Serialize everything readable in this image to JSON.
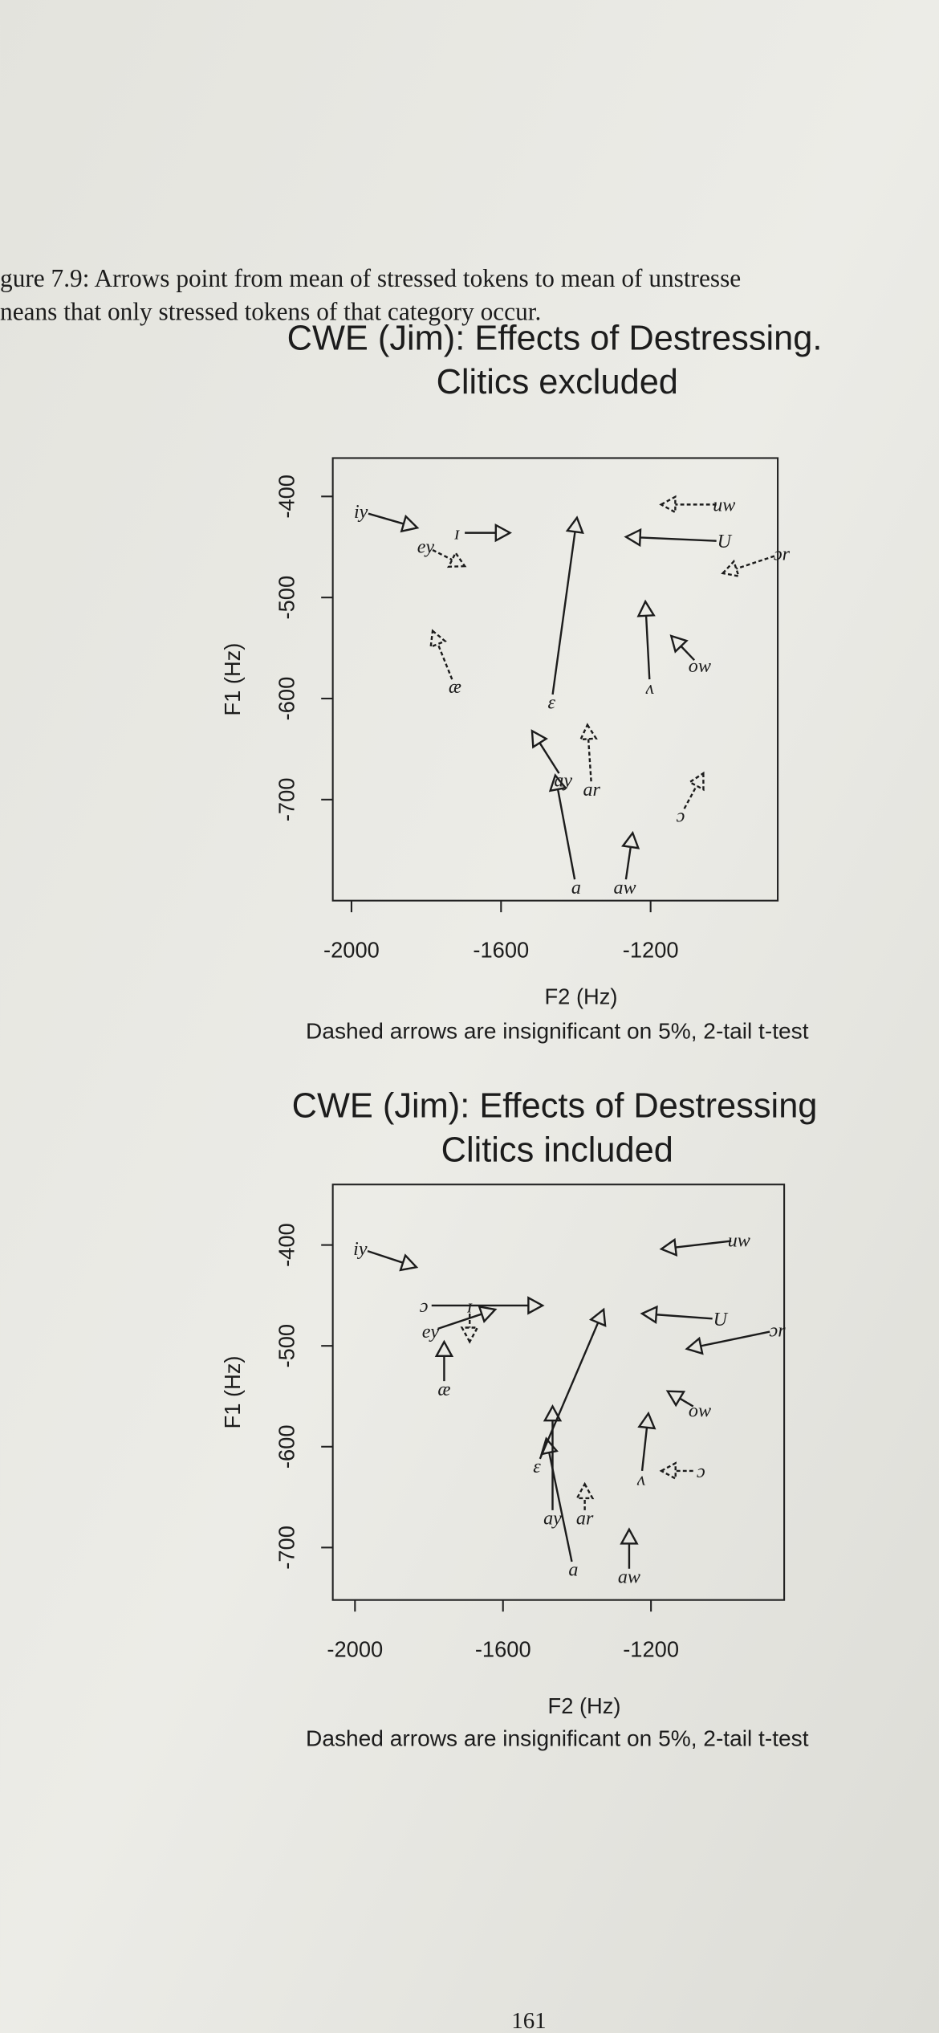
{
  "caption": [
    "gure 7.9: Arrows point from mean of stressed tokens to mean of unstresse",
    "neans that only stressed tokens of that category occur."
  ],
  "chart_data": [
    {
      "type": "arrow",
      "title": "CWE (Jim): Effects of Destressing.",
      "subtitle": "Clitics excluded",
      "x_label": "F2 (Hz)",
      "y_label": "F1 (Hz)",
      "note": "Dashed arrows are insignificant on 5%, 2-tail t-test",
      "xlim": [
        -2050,
        -860
      ],
      "ylim": [
        -800,
        -362
      ],
      "xticks": [
        -2000,
        -1600,
        -1200
      ],
      "yticks": [
        -400,
        -500,
        -600,
        -700
      ],
      "arrows": [
        {
          "label": "iy",
          "x": -1955,
          "y": -417,
          "x_end": -1824,
          "y_end": -431,
          "dashed": false
        },
        {
          "label": "ey",
          "x": -1783,
          "y": -453,
          "x_end": -1697,
          "y_end": -469,
          "dashed": true
        },
        {
          "label": "ɪ",
          "x": -1697,
          "y": -436,
          "x_end": -1576,
          "y_end": -436,
          "dashed": false
        },
        {
          "label": "æ",
          "x": -1731,
          "y": -581,
          "x_end": -1783,
          "y_end": -533,
          "dashed": true
        },
        {
          "label": "ɛ",
          "x": -1462,
          "y": -596,
          "x_end": -1397,
          "y_end": -421,
          "dashed": false
        },
        {
          "label": "U",
          "x": -1024,
          "y": -444,
          "x_end": -1266,
          "y_end": -440,
          "dashed": false
        },
        {
          "label": "uw",
          "x": -1024,
          "y": -408,
          "x_end": -1172,
          "y_end": -408,
          "dashed": true
        },
        {
          "label": "ɔr",
          "x": -869,
          "y": -459,
          "x_end": -1007,
          "y_end": -476,
          "dashed": true
        },
        {
          "label": "ow",
          "x": -1083,
          "y": -562,
          "x_end": -1145,
          "y_end": -538,
          "dashed": false
        },
        {
          "label": "ʌ",
          "x": -1203,
          "y": -581,
          "x_end": -1214,
          "y_end": -504,
          "dashed": false
        },
        {
          "label": "a",
          "x": -1403,
          "y": -779,
          "x_end": -1455,
          "y_end": -676,
          "dashed": false
        },
        {
          "label": "ay",
          "x": -1445,
          "y": -674,
          "x_end": -1517,
          "y_end": -632,
          "dashed": false
        },
        {
          "label": "ar",
          "x": -1359,
          "y": -682,
          "x_end": -1369,
          "y_end": -626,
          "dashed": true
        },
        {
          "label": "aw",
          "x": -1266,
          "y": -779,
          "x_end": -1248,
          "y_end": -733,
          "dashed": false
        },
        {
          "label": "ɔ",
          "x": -1110,
          "y": -709,
          "x_end": -1059,
          "y_end": -674,
          "dashed": true
        }
      ]
    },
    {
      "type": "arrow",
      "title": "CWE (Jim): Effects of Destressing",
      "subtitle": "Clitics included",
      "x_label": "F2 (Hz)",
      "y_label": "F1 (Hz)",
      "note": "Dashed arrows are insignificant on 5%, 2-tail t-test",
      "xlim": [
        -2060,
        -840
      ],
      "ylim": [
        -752,
        -340
      ],
      "xticks": [
        -2000,
        -1600,
        -1200
      ],
      "yticks": [
        -400,
        -500,
        -600,
        -700
      ],
      "arrows": [
        {
          "label": "iy",
          "x": -1966,
          "y": -406,
          "x_end": -1834,
          "y_end": -422,
          "dashed": false
        },
        {
          "label": "ɔ",
          "x": -1793,
          "y": -460,
          "x_end": -1493,
          "y_end": -460,
          "dashed": false
        },
        {
          "label": "ey",
          "x": -1776,
          "y": -483,
          "x_end": -1621,
          "y_end": -464,
          "dashed": false
        },
        {
          "label": "ɪ",
          "x": -1690,
          "y": -468,
          "x_end": -1690,
          "y_end": -496,
          "dashed": true
        },
        {
          "label": "æ",
          "x": -1759,
          "y": -535,
          "x_end": -1759,
          "y_end": -496,
          "dashed": false
        },
        {
          "label": "ɛ",
          "x": -1500,
          "y": -612,
          "x_end": -1328,
          "y_end": -464,
          "dashed": false
        },
        {
          "label": "U",
          "x": -1034,
          "y": -473,
          "x_end": -1224,
          "y_end": -468,
          "dashed": false
        },
        {
          "label": "uw",
          "x": -983,
          "y": -396,
          "x_end": -1172,
          "y_end": -404,
          "dashed": false
        },
        {
          "label": "ɔr",
          "x": -879,
          "y": -486,
          "x_end": -1103,
          "y_end": -503,
          "dashed": false
        },
        {
          "label": "ow",
          "x": -1086,
          "y": -560,
          "x_end": -1155,
          "y_end": -545,
          "dashed": false
        },
        {
          "label": "ʌ",
          "x": -1224,
          "y": -624,
          "x_end": -1207,
          "y_end": -567,
          "dashed": false
        },
        {
          "label": "a",
          "x": -1414,
          "y": -714,
          "x_end": -1483,
          "y_end": -592,
          "dashed": false
        },
        {
          "label": "ay",
          "x": -1466,
          "y": -663,
          "x_end": -1466,
          "y_end": -560,
          "dashed": false
        },
        {
          "label": "ar",
          "x": -1379,
          "y": -663,
          "x_end": -1379,
          "y_end": -637,
          "dashed": true
        },
        {
          "label": "aw",
          "x": -1259,
          "y": -721,
          "x_end": -1259,
          "y_end": -682,
          "dashed": false
        },
        {
          "label": "ɔ",
          "x": -1086,
          "y": -624,
          "x_end": -1172,
          "y_end": -624,
          "dashed": true
        }
      ]
    }
  ],
  "page_number": "161"
}
